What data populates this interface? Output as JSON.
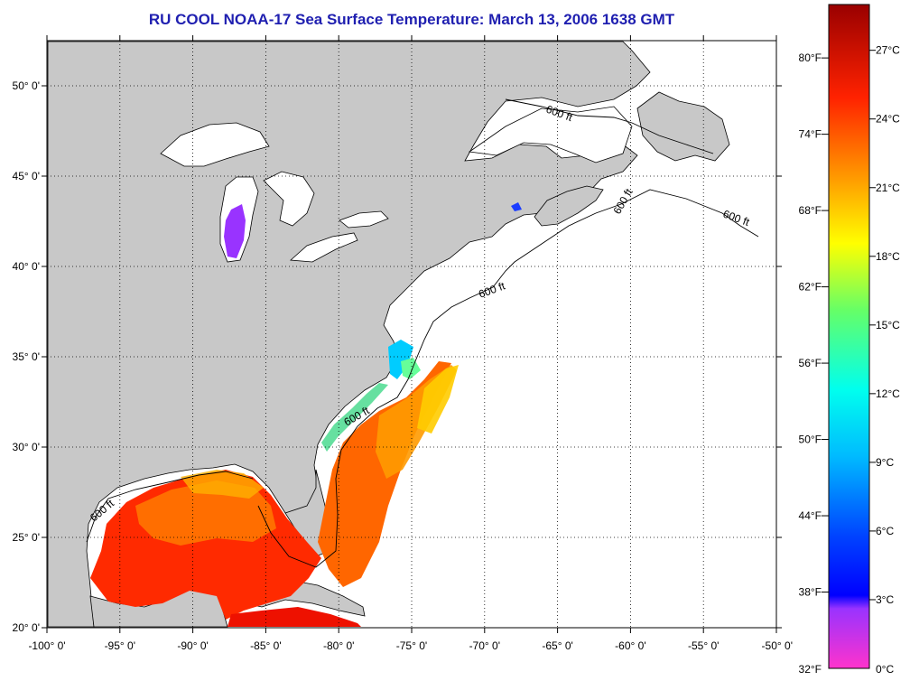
{
  "title": "RU COOL  NOAA-17  Sea Surface Temperature:  March 13, 2006 1638 GMT",
  "lat_labels": [
    "50° 0'",
    "45° 0'",
    "40° 0'",
    "35° 0'",
    "30° 0'",
    "25° 0'",
    "20° 0'"
  ],
  "lon_labels": [
    "-100° 0'",
    "-95° 0'",
    "-90° 0'",
    "-85° 0'",
    "-80° 0'",
    "-75° 0'",
    "-70° 0'",
    "-65° 0'",
    "-60° 0'",
    "-55° 0'",
    "-50° 0'"
  ],
  "map": {
    "lat_range": [
      20,
      52.5
    ],
    "lon_range": [
      -100,
      -50
    ],
    "isobath_label": "600 ft",
    "land_color": "#c8c8c8",
    "no_data_color": "#ffffff"
  },
  "colorbar": {
    "fahrenheit_labels": [
      "80°F",
      "74°F",
      "68°F",
      "62°F",
      "56°F",
      "50°F",
      "44°F",
      "38°F",
      "32°F"
    ],
    "celsius_labels": [
      "27°C",
      "24°C",
      "21°C",
      "18°C",
      "15°C",
      "12°C",
      "9°C",
      "6°C",
      "3°C",
      "0°C"
    ],
    "range_c": [
      0,
      29
    ],
    "colors": [
      "#ff33cc",
      "#9933ff",
      "#0000ff",
      "#00bbff",
      "#00ffee",
      "#66ff66",
      "#ffff00",
      "#ff9900",
      "#ff2200",
      "#990000"
    ]
  }
}
